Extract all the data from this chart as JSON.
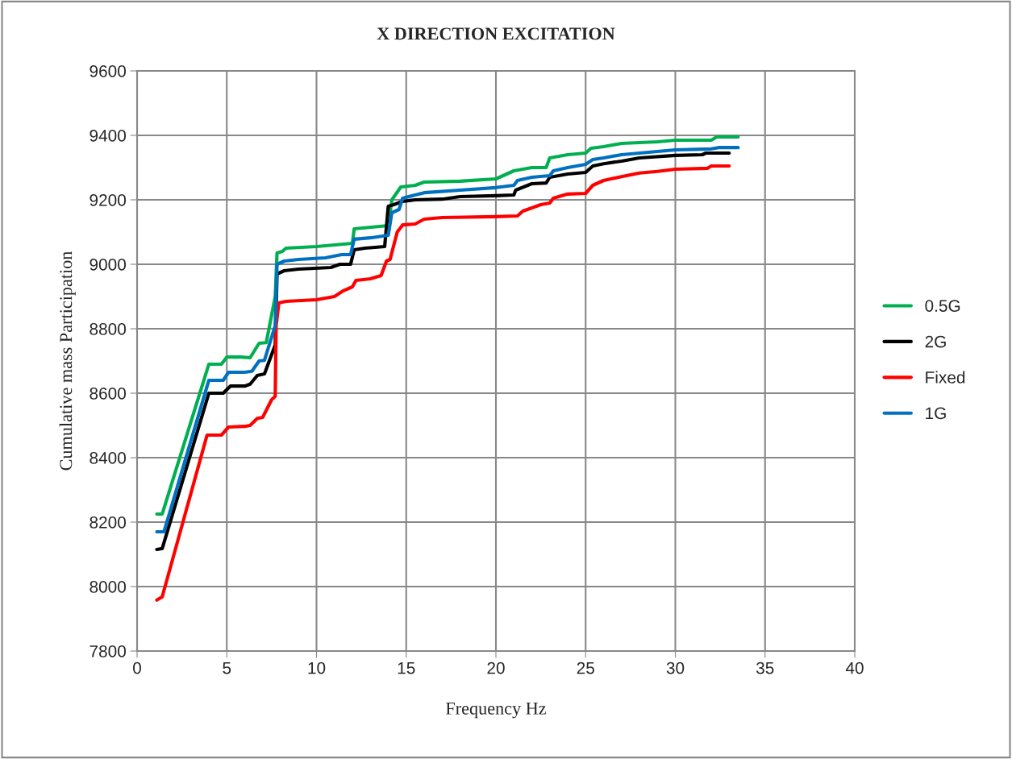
{
  "chart_data": {
    "type": "line",
    "title": "X DIRECTION EXCITATION",
    "xlabel": "Frequency Hz",
    "ylabel": "Cumulative mass Participation",
    "xlim": [
      0,
      40
    ],
    "xticks": [
      0,
      5,
      10,
      15,
      20,
      25,
      30,
      35,
      40
    ],
    "ylim": [
      7800,
      9600
    ],
    "yticks": [
      7800,
      8000,
      8200,
      8400,
      8600,
      8800,
      9000,
      9200,
      9400,
      9600
    ],
    "grid": true,
    "legend": "right",
    "marker": "none",
    "line_style": "solid",
    "series": [
      {
        "name": "0.5G",
        "color": "#00b050",
        "x": [
          1.1,
          1.4,
          4.0,
          4.7,
          5.0,
          5.8,
          6.3,
          6.8,
          7.2,
          7.7,
          7.8,
          8.1,
          8.3,
          10,
          11,
          12,
          12.1,
          14,
          14.2,
          14.7,
          15.5,
          16,
          18,
          20,
          21,
          22,
          22.8,
          23,
          24,
          25,
          25.3,
          26,
          27,
          29,
          30,
          32,
          32.3,
          33.5
        ],
        "values": [
          8225,
          8225,
          8690,
          8690,
          8712,
          8712,
          8710,
          8755,
          8757,
          8900,
          9035,
          9040,
          9050,
          9055,
          9060,
          9065,
          9110,
          9120,
          9200,
          9240,
          9245,
          9255,
          9258,
          9265,
          9290,
          9300,
          9300,
          9330,
          9340,
          9345,
          9360,
          9365,
          9375,
          9380,
          9385,
          9385,
          9395,
          9395
        ]
      },
      {
        "name": "2G",
        "color": "#000000",
        "x": [
          1.1,
          1.4,
          4.0,
          4.8,
          5.2,
          6.0,
          6.3,
          6.7,
          7.1,
          7.7,
          7.8,
          8.2,
          9,
          10.8,
          11.3,
          11.9,
          12.1,
          12.7,
          13.8,
          14.0,
          14.3,
          14.8,
          15.5,
          17,
          18,
          20,
          21,
          21.1,
          22,
          22.8,
          23,
          24,
          25,
          25.4,
          26,
          27,
          28,
          30,
          31.5,
          31.7,
          33
        ],
        "values": [
          8115,
          8118,
          8600,
          8600,
          8622,
          8622,
          8628,
          8655,
          8660,
          8750,
          8970,
          8980,
          8985,
          8990,
          9000,
          9000,
          9045,
          9050,
          9055,
          9180,
          9185,
          9195,
          9200,
          9202,
          9210,
          9213,
          9215,
          9230,
          9250,
          9252,
          9270,
          9280,
          9285,
          9305,
          9312,
          9320,
          9330,
          9338,
          9340,
          9345,
          9345
        ]
      },
      {
        "name": "Fixed",
        "color": "#ff0000",
        "x": [
          1.1,
          1.4,
          3.9,
          4.7,
          5.1,
          6.0,
          6.3,
          6.7,
          7.0,
          7.5,
          7.7,
          7.75,
          7.9,
          8.3,
          10,
          11,
          11.5,
          12,
          12.2,
          13,
          13.6,
          13.9,
          14.1,
          14.5,
          14.8,
          15.5,
          16,
          17,
          20,
          21.2,
          21.5,
          22.5,
          23,
          23.2,
          24,
          25,
          25.4,
          26,
          27,
          28,
          29,
          30,
          31.8,
          32,
          33
        ],
        "values": [
          7958,
          7968,
          8470,
          8470,
          8495,
          8497,
          8500,
          8522,
          8525,
          8580,
          8590,
          8810,
          8880,
          8885,
          8890,
          8900,
          8918,
          8930,
          8950,
          8955,
          8965,
          9010,
          9015,
          9100,
          9122,
          9125,
          9140,
          9145,
          9148,
          9150,
          9165,
          9185,
          9190,
          9205,
          9218,
          9220,
          9245,
          9260,
          9272,
          9283,
          9288,
          9295,
          9298,
          9305,
          9305
        ]
      },
      {
        "name": "1G",
        "color": "#0070c0",
        "x": [
          1.1,
          1.5,
          4.0,
          4.8,
          5.1,
          6.0,
          6.4,
          6.8,
          7.1,
          7.7,
          7.8,
          8.2,
          9,
          10.5,
          11.4,
          11.9,
          12.1,
          13,
          14,
          14.2,
          14.6,
          14.8,
          15.5,
          16,
          18,
          20,
          21,
          21.2,
          22,
          23,
          23.2,
          24,
          25,
          25.4,
          26,
          27,
          29,
          30,
          32,
          32.4,
          33.5
        ],
        "values": [
          8170,
          8170,
          8640,
          8640,
          8665,
          8665,
          8668,
          8700,
          8702,
          8810,
          9000,
          9010,
          9015,
          9020,
          9030,
          9030,
          9078,
          9082,
          9090,
          9160,
          9170,
          9205,
          9215,
          9222,
          9230,
          9238,
          9245,
          9260,
          9270,
          9275,
          9290,
          9300,
          9310,
          9325,
          9330,
          9340,
          9350,
          9355,
          9358,
          9362,
          9362
        ]
      }
    ]
  }
}
